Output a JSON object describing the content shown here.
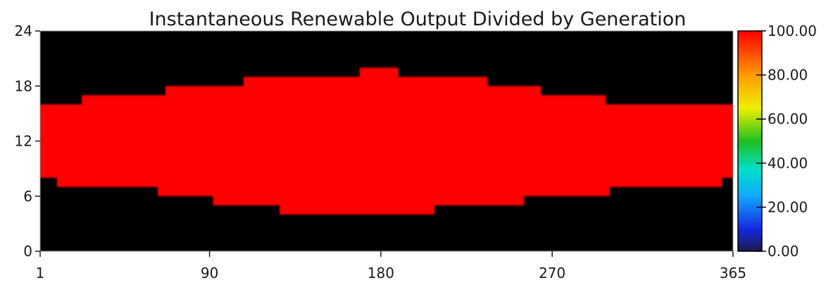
{
  "chart_data": {
    "type": "heatmap",
    "title": "Instantaneous Renewable Output Divided by Generation",
    "xlabel": "",
    "ylabel": "",
    "xlim": [
      1,
      365
    ],
    "ylim": [
      0,
      24
    ],
    "x_ticks": [
      "1",
      "90",
      "180",
      "270",
      "365"
    ],
    "x_tick_values": [
      1,
      90,
      180,
      270,
      365
    ],
    "y_ticks": [
      "0",
      "6",
      "12",
      "18",
      "24"
    ],
    "y_tick_values": [
      0,
      6,
      12,
      18,
      24
    ],
    "background_value": 0,
    "band_value": 100,
    "band_description": "Renewable output equals 100% of generation during daylight hours",
    "bands": [
      {
        "x_start": 1,
        "x_end": 10,
        "y_start": 8,
        "y_end": 16
      },
      {
        "x_start": 10,
        "x_end": 23,
        "y_start": 7,
        "y_end": 16
      },
      {
        "x_start": 23,
        "x_end": 63,
        "y_start": 7,
        "y_end": 17
      },
      {
        "x_start": 63,
        "x_end": 67,
        "y_start": 6,
        "y_end": 17
      },
      {
        "x_start": 67,
        "x_end": 92,
        "y_start": 6,
        "y_end": 18
      },
      {
        "x_start": 92,
        "x_end": 108,
        "y_start": 5,
        "y_end": 18
      },
      {
        "x_start": 108,
        "x_end": 127,
        "y_start": 5,
        "y_end": 19
      },
      {
        "x_start": 127,
        "x_end": 169,
        "y_start": 4,
        "y_end": 19
      },
      {
        "x_start": 169,
        "x_end": 189,
        "y_start": 4,
        "y_end": 20
      },
      {
        "x_start": 189,
        "x_end": 208,
        "y_start": 4,
        "y_end": 19
      },
      {
        "x_start": 208,
        "x_end": 236,
        "y_start": 5,
        "y_end": 19
      },
      {
        "x_start": 236,
        "x_end": 255,
        "y_start": 5,
        "y_end": 18
      },
      {
        "x_start": 255,
        "x_end": 264,
        "y_start": 6,
        "y_end": 18
      },
      {
        "x_start": 264,
        "x_end": 298,
        "y_start": 6,
        "y_end": 17
      },
      {
        "x_start": 298,
        "x_end": 300,
        "y_start": 6,
        "y_end": 16
      },
      {
        "x_start": 300,
        "x_end": 359,
        "y_start": 7,
        "y_end": 16
      },
      {
        "x_start": 359,
        "x_end": 365,
        "y_start": 8,
        "y_end": 16
      }
    ],
    "colorbar": {
      "min": 0,
      "max": 100,
      "tick_labels": [
        "100.00",
        "80.00",
        "60.00",
        "40.00",
        "20.00",
        "0.00"
      ],
      "tick_values": [
        100,
        80,
        60,
        40,
        20,
        0
      ],
      "color_stops": [
        {
          "value": 0,
          "color": "#1a1a4a"
        },
        {
          "value": 10,
          "color": "#1428e0"
        },
        {
          "value": 25,
          "color": "#12a8ff"
        },
        {
          "value": 37,
          "color": "#00e0c8"
        },
        {
          "value": 50,
          "color": "#20c020"
        },
        {
          "value": 65,
          "color": "#f0ef00"
        },
        {
          "value": 80,
          "color": "#ff9a00"
        },
        {
          "value": 100,
          "color": "#ff0000"
        }
      ],
      "placement": "right"
    },
    "grid": false,
    "colors": {
      "band": "#ff0000",
      "background": "#000000"
    }
  }
}
